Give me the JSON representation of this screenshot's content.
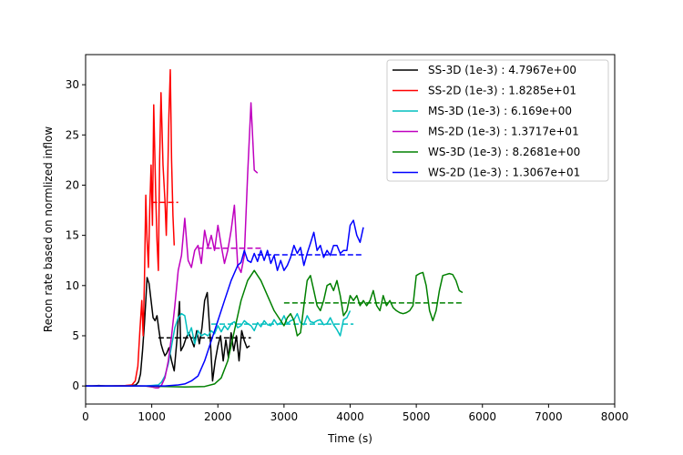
{
  "chart_data": {
    "type": "line",
    "xlabel": "Time (s)",
    "ylabel": "Recon rate based on normlized inflow",
    "xlim": [
      0,
      8000
    ],
    "ylim": [
      -1.8,
      33
    ],
    "xticks": [
      0,
      1000,
      2000,
      3000,
      4000,
      5000,
      6000,
      7000,
      8000
    ],
    "yticks": [
      0,
      5,
      10,
      15,
      20,
      25,
      30
    ],
    "grid": false,
    "legend_position": "top-right",
    "series": [
      {
        "name": "SS-3D (1e-3) : 4.7967e+00",
        "color": "#000000",
        "x": [
          0,
          100,
          200,
          300,
          400,
          500,
          600,
          700,
          760,
          800,
          830,
          860,
          890,
          910,
          930,
          960,
          990,
          1020,
          1050,
          1080,
          1110,
          1140,
          1170,
          1200,
          1230,
          1260,
          1300,
          1340,
          1380,
          1420,
          1440,
          1480,
          1520,
          1560,
          1600,
          1640,
          1680,
          1720,
          1760,
          1800,
          1840,
          1880,
          1920,
          1960,
          2000,
          2040,
          2080,
          2120,
          2160,
          2200,
          2240,
          2280,
          2320,
          2360,
          2400,
          2440,
          2480
        ],
        "y": [
          0,
          0,
          0.05,
          0,
          0,
          0,
          0.02,
          0.05,
          0.1,
          0.4,
          1.2,
          3.5,
          6.2,
          8.5,
          10.8,
          10.2,
          8.5,
          6.8,
          6.5,
          7.0,
          5.5,
          4.2,
          3.5,
          3.0,
          3.3,
          3.8,
          2.5,
          1.5,
          4.5,
          8.4,
          3.5,
          4.0,
          4.8,
          5.3,
          4.6,
          3.9,
          5.5,
          4.2,
          5.8,
          8.5,
          9.3,
          5.3,
          0.5,
          2.5,
          4.0,
          5.0,
          2.5,
          4.6,
          2.8,
          5.3,
          3.5,
          5.0,
          2.5,
          5.5,
          4.5,
          3.8,
          4.0
        ]
      },
      {
        "name": "SS-2D (1e-3) : 1.8285e+01",
        "color": "#ff0000",
        "x": [
          0,
          200,
          400,
          600,
          700,
          750,
          790,
          820,
          850,
          870,
          890,
          910,
          930,
          950,
          970,
          990,
          1010,
          1030,
          1060,
          1080,
          1100,
          1120,
          1140,
          1170,
          1200,
          1220,
          1240,
          1260,
          1280,
          1300,
          1320,
          1340
        ],
        "y": [
          0,
          0,
          0,
          0.05,
          0.1,
          0.5,
          2.0,
          5.5,
          8.5,
          5.0,
          10.5,
          19.0,
          14.5,
          11.8,
          17.5,
          22.0,
          16.0,
          28.0,
          19.0,
          14.5,
          11.5,
          22.5,
          29.2,
          22.0,
          18.5,
          15.0,
          20.5,
          27.0,
          31.5,
          22.5,
          17.0,
          14.0
        ]
      },
      {
        "name": "MS-3D (1e-3) : 6.169e+00",
        "color": "#00bfbf",
        "x": [
          0,
          200,
          400,
          600,
          800,
          900,
          1000,
          1100,
          1150,
          1200,
          1250,
          1300,
          1350,
          1400,
          1450,
          1500,
          1550,
          1600,
          1650,
          1700,
          1750,
          1800,
          1850,
          1900,
          1950,
          2000,
          2050,
          2100,
          2150,
          2200,
          2250,
          2300,
          2350,
          2400,
          2450,
          2500,
          2550,
          2600,
          2650,
          2700,
          2750,
          2800,
          2850,
          2900,
          2950,
          3000,
          3050,
          3100,
          3150,
          3200,
          3250,
          3300,
          3350,
          3400,
          3450,
          3500,
          3550,
          3600,
          3650,
          3700,
          3750,
          3800,
          3850,
          3900,
          3950,
          4000
        ],
        "y": [
          0,
          0,
          0,
          0,
          0,
          0,
          0.05,
          0.1,
          0.4,
          1.0,
          2.2,
          4.0,
          5.8,
          6.8,
          7.2,
          7.0,
          5.0,
          5.8,
          4.2,
          5.5,
          5.0,
          5.2,
          5.0,
          5.5,
          5.2,
          6.0,
          5.4,
          6.0,
          5.6,
          6.2,
          6.4,
          5.8,
          6.0,
          6.5,
          6.2,
          6.0,
          5.5,
          6.3,
          5.9,
          6.5,
          6.1,
          6.0,
          6.6,
          6.1,
          6.3,
          7.0,
          6.2,
          6.5,
          6.6,
          7.2,
          6.3,
          6.1,
          7.0,
          6.4,
          6.3,
          6.5,
          6.6,
          6.1,
          6.2,
          6.8,
          6.1,
          5.6,
          5.0,
          6.6,
          6.8,
          7.5
        ]
      },
      {
        "name": "MS-2D (1e-3) : 1.3717e+01",
        "color": "#bf00bf",
        "x": [
          0,
          200,
          400,
          600,
          800,
          900,
          1000,
          1060,
          1100,
          1150,
          1200,
          1250,
          1300,
          1350,
          1400,
          1450,
          1500,
          1550,
          1600,
          1650,
          1700,
          1750,
          1800,
          1850,
          1900,
          1950,
          2000,
          2050,
          2100,
          2150,
          2200,
          2250,
          2300,
          2350,
          2400,
          2450,
          2500,
          2550,
          2600
        ],
        "y": [
          0,
          0,
          0,
          0,
          0,
          0,
          -0.1,
          -0.2,
          -0.2,
          0.1,
          0.8,
          2.5,
          5.0,
          8.0,
          11.5,
          13.0,
          16.7,
          12.5,
          11.8,
          13.5,
          14.0,
          12.2,
          15.5,
          13.8,
          15.0,
          13.5,
          16.0,
          14.0,
          12.2,
          13.5,
          15.5,
          18.0,
          12.0,
          11.3,
          13.0,
          21.0,
          28.2,
          21.5,
          21.2
        ]
      },
      {
        "name": "WS-3D (1e-3) : 8.2681e+00",
        "color": "#008000",
        "x": [
          0,
          400,
          800,
          1200,
          1500,
          1800,
          1950,
          2050,
          2150,
          2250,
          2350,
          2450,
          2550,
          2650,
          2750,
          2850,
          2950,
          3000,
          3050,
          3100,
          3150,
          3200,
          3250,
          3300,
          3350,
          3400,
          3450,
          3500,
          3550,
          3600,
          3650,
          3700,
          3750,
          3800,
          3850,
          3900,
          3950,
          4000,
          4050,
          4100,
          4150,
          4200,
          4250,
          4300,
          4350,
          4400,
          4450,
          4500,
          4550,
          4600,
          4650,
          4700,
          4750,
          4800,
          4850,
          4900,
          4950,
          5000,
          5050,
          5100,
          5150,
          5200,
          5250,
          5300,
          5350,
          5400,
          5450,
          5500,
          5550,
          5600,
          5650,
          5700
        ],
        "y": [
          0,
          0,
          0,
          -0.05,
          -0.1,
          -0.05,
          0.2,
          0.8,
          2.5,
          5.5,
          8.5,
          10.5,
          11.5,
          10.5,
          9.0,
          7.5,
          6.5,
          6.0,
          6.8,
          7.2,
          6.5,
          5.0,
          5.3,
          8.0,
          10.5,
          11.0,
          9.5,
          8.0,
          7.5,
          8.5,
          10.0,
          10.2,
          9.5,
          10.5,
          9.0,
          7.0,
          7.5,
          9.0,
          8.5,
          9.0,
          8.0,
          8.5,
          8.0,
          8.5,
          9.5,
          8.0,
          7.5,
          9.0,
          8.0,
          8.5,
          7.8,
          7.5,
          7.3,
          7.2,
          7.3,
          7.5,
          8.0,
          11.0,
          11.2,
          11.3,
          10.0,
          7.5,
          6.5,
          7.5,
          9.5,
          11.0,
          11.1,
          11.2,
          11.1,
          10.5,
          9.5,
          9.3
        ]
      },
      {
        "name": "WS-2D (1e-3) : 1.3067e+01",
        "color": "#0000ff",
        "x": [
          0,
          200,
          400,
          600,
          800,
          1000,
          1200,
          1400,
          1500,
          1600,
          1700,
          1800,
          1900,
          2000,
          2100,
          2200,
          2300,
          2350,
          2400,
          2450,
          2500,
          2550,
          2600,
          2650,
          2700,
          2750,
          2800,
          2850,
          2900,
          2950,
          3000,
          3050,
          3100,
          3150,
          3200,
          3250,
          3300,
          3350,
          3400,
          3450,
          3500,
          3550,
          3600,
          3650,
          3700,
          3750,
          3800,
          3850,
          3900,
          3950,
          4000,
          4050,
          4100,
          4150,
          4200
        ],
        "y": [
          0,
          0,
          0,
          0,
          0,
          0,
          0,
          0.1,
          0.2,
          0.5,
          1.0,
          2.5,
          4.5,
          6.5,
          8.5,
          10.5,
          12.0,
          12.3,
          13.5,
          12.5,
          12.3,
          13.2,
          12.4,
          13.5,
          12.5,
          13.5,
          12.2,
          13.0,
          11.5,
          12.5,
          11.5,
          12.0,
          12.8,
          14.0,
          13.2,
          13.8,
          12.0,
          13.2,
          14.2,
          15.3,
          13.5,
          14.0,
          12.8,
          13.5,
          13.0,
          14.0,
          14.0,
          13.2,
          13.5,
          13.5,
          16.0,
          16.5,
          15.0,
          14.3,
          15.8
        ]
      }
    ],
    "averages": [
      {
        "series": "SS-3D (1e-3) : 4.7967e+00",
        "color": "#000000",
        "value": 4.7967,
        "x": [
          1100,
          2500
        ]
      },
      {
        "series": "SS-2D (1e-3) : 1.8285e+01",
        "color": "#ff0000",
        "value": 18.285,
        "x": [
          1000,
          1400
        ]
      },
      {
        "series": "MS-3D (1e-3) : 6.169e+00",
        "color": "#00bfbf",
        "value": 6.169,
        "x": [
          1900,
          4050
        ]
      },
      {
        "series": "MS-2D (1e-3) : 1.3717e+01",
        "color": "#bf00bf",
        "value": 13.717,
        "x": [
          1700,
          2650
        ]
      },
      {
        "series": "WS-3D (1e-3) : 8.2681e+00",
        "color": "#008000",
        "value": 8.2681,
        "x": [
          3000,
          5700
        ]
      },
      {
        "series": "WS-2D (1e-3) : 1.3067e+01",
        "color": "#0000ff",
        "value": 13.067,
        "x": [
          2600,
          4200
        ]
      }
    ]
  }
}
